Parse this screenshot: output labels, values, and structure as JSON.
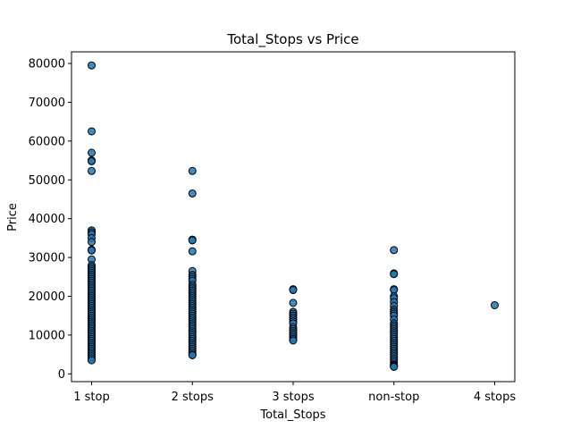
{
  "chart_data": {
    "type": "scatter",
    "title": "Total_Stops vs Price",
    "xlabel": "Total_Stops",
    "ylabel": "Price",
    "categories": [
      "1 stop",
      "2 stops",
      "3 stops",
      "non-stop",
      "4 stops"
    ],
    "ylim": [
      -2000,
      83000
    ],
    "yticks": [
      0,
      10000,
      20000,
      30000,
      40000,
      50000,
      60000,
      70000,
      80000
    ],
    "grid": false,
    "marker_color": "#1f77b4",
    "edge_color": "#000000",
    "series": [
      {
        "category": "1 stop",
        "values": [
          79500,
          62500,
          57000,
          55000,
          54800,
          52300,
          37000,
          36500,
          36000,
          35000,
          34000,
          32000,
          31800,
          29500,
          28000,
          27500,
          27000,
          26500,
          26000,
          25500,
          25000,
          24500,
          24000,
          23500,
          23000,
          22500,
          22000,
          21500,
          21000,
          20500,
          20000,
          19500,
          19000,
          18500,
          18000,
          17500,
          17000,
          16500,
          16000,
          15500,
          15000,
          14500,
          14000,
          13500,
          13000,
          12500,
          12000,
          11500,
          11000,
          10500,
          10000,
          9500,
          9000,
          8500,
          8000,
          7500,
          7000,
          6500,
          6000,
          5500,
          5000,
          4500,
          4000,
          3500
        ]
      },
      {
        "category": "2 stops",
        "values": [
          52300,
          46500,
          34600,
          34400,
          31600,
          26500,
          25500,
          25000,
          24500,
          24000,
          23000,
          22500,
          22000,
          21500,
          21000,
          20500,
          20000,
          19500,
          19000,
          18500,
          18000,
          17500,
          17000,
          16500,
          16000,
          15500,
          15000,
          14500,
          14000,
          13500,
          13000,
          12500,
          12000,
          11500,
          11000,
          10500,
          10000,
          9500,
          9000,
          8500,
          8000,
          7500,
          7000,
          6500,
          6000,
          5500,
          5000,
          4800
        ]
      },
      {
        "category": "3 stops",
        "values": [
          21800,
          21600,
          18300,
          16000,
          15500,
          15000,
          14500,
          14000,
          13500,
          13000,
          12000,
          11500,
          11000,
          10500,
          10000,
          9500,
          9000,
          8600
        ]
      },
      {
        "category": "non-stop",
        "values": [
          31900,
          25900,
          25700,
          21800,
          21600,
          20000,
          19500,
          18500,
          17500,
          16500,
          16000,
          15500,
          15000,
          14000,
          13000,
          12500,
          12000,
          11500,
          11000,
          10500,
          10000,
          9500,
          9000,
          8500,
          8000,
          7500,
          7000,
          6500,
          6000,
          5500,
          5000,
          4500,
          4000,
          3500,
          3000,
          2500,
          2200,
          2000,
          1800
        ]
      },
      {
        "category": "4 stops",
        "values": [
          17700
        ]
      }
    ]
  }
}
